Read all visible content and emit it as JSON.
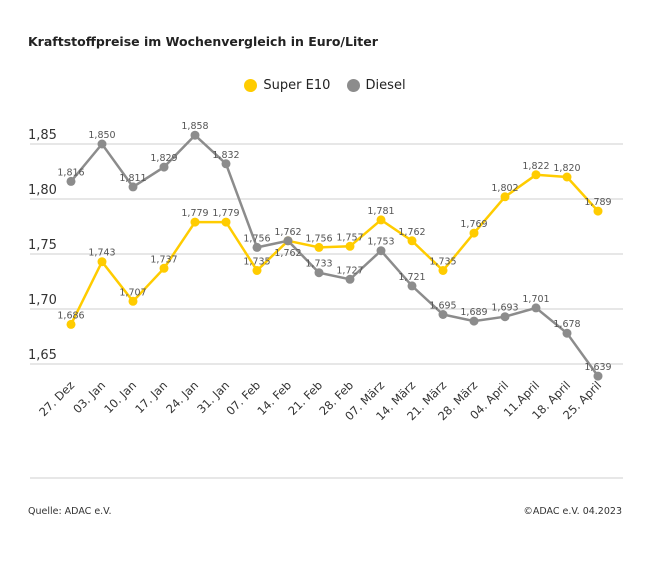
{
  "chart_data": {
    "type": "line",
    "title": "Kraftstoffpreise im Wochenvergleich in Euro/Liter",
    "categories": [
      "27. Dez",
      "03. Jan",
      "10. Jan",
      "17. Jan",
      "24. Jan",
      "31. Jan",
      "07. Feb",
      "14. Feb",
      "21. Feb",
      "28. Feb",
      "07. März",
      "14. März",
      "21. März",
      "28. März",
      "04. April",
      "11.April",
      "18. April",
      "25. April"
    ],
    "series": [
      {
        "name": "Super E10",
        "color": "#ffcc00",
        "values": [
          1.686,
          1.743,
          1.707,
          1.737,
          1.779,
          1.779,
          1.735,
          1.762,
          1.756,
          1.757,
          1.781,
          1.762,
          1.735,
          1.769,
          1.802,
          1.822,
          1.82,
          1.789
        ]
      },
      {
        "name": "Diesel",
        "color": "#8c8c8c",
        "values": [
          1.816,
          1.85,
          1.811,
          1.829,
          1.858,
          1.832,
          1.756,
          1.762,
          1.733,
          1.727,
          1.753,
          1.721,
          1.695,
          1.689,
          1.693,
          1.701,
          1.678,
          1.639
        ]
      }
    ],
    "yticks": [
      "1,65",
      "1,70",
      "1,75",
      "1,80",
      "1,85"
    ],
    "ytick_values": [
      1.65,
      1.7,
      1.75,
      1.8,
      1.85
    ],
    "ylim": [
      1.62,
      1.87
    ],
    "grid": true,
    "legend": "top-center",
    "xlabel": "",
    "ylabel": ""
  },
  "footer": {
    "source": "Quelle: ADAC e.V.",
    "copyright": "©ADAC e.V. 04.2023"
  }
}
